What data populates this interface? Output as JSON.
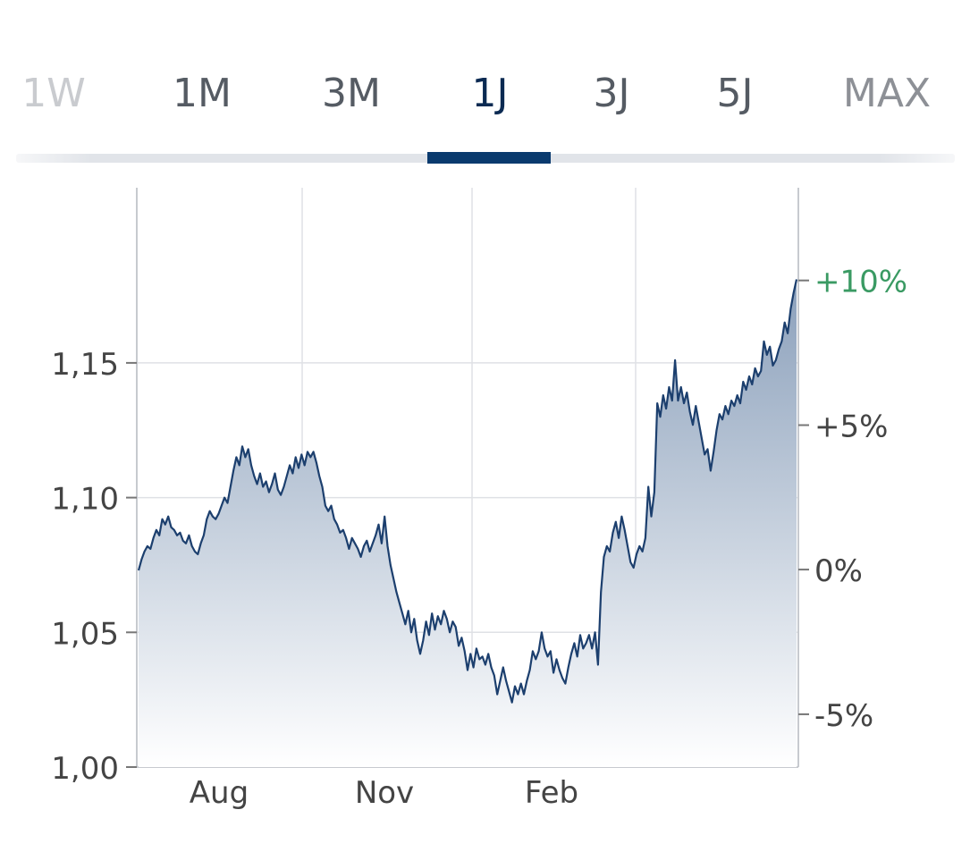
{
  "tabs": [
    {
      "label": "1W",
      "state": "faded"
    },
    {
      "label": "1M",
      "state": "normal"
    },
    {
      "label": "3M",
      "state": "normal"
    },
    {
      "label": "1J",
      "state": "active"
    },
    {
      "label": "3J",
      "state": "normal"
    },
    {
      "label": "5J",
      "state": "normal"
    },
    {
      "label": "MAX",
      "state": "dim"
    }
  ],
  "chart_data": {
    "type": "area",
    "title": "",
    "xlabel": "",
    "ylabel": "",
    "x_tick_labels": [
      "Aug",
      "Nov",
      "Feb"
    ],
    "y_left_ticks": [
      {
        "value": 1.0,
        "label": "1,00"
      },
      {
        "value": 1.05,
        "label": "1,05"
      },
      {
        "value": 1.1,
        "label": "1,10"
      },
      {
        "value": 1.15,
        "label": "1,15"
      }
    ],
    "y_right_ticks": [
      {
        "value": 1.1806,
        "label": "+10%"
      },
      {
        "value": 1.1269,
        "label": "+5%"
      },
      {
        "value": 1.0733,
        "label": "0%"
      },
      {
        "value": 1.0196,
        "label": "-5%"
      }
    ],
    "ylim": [
      1.0,
      1.215
    ],
    "grid": true,
    "colors": {
      "line": "#1c3f6e",
      "fill_top": "#8ba0bb",
      "fill_bottom": "#ffffff",
      "positive_label": "#3a9a63",
      "axis_text": "#444444",
      "grid": "#dfe1e5"
    },
    "series": [
      {
        "values": [
          1.073,
          1.077,
          1.08,
          1.082,
          1.081,
          1.085,
          1.088,
          1.086,
          1.092,
          1.09,
          1.093,
          1.089,
          1.088,
          1.086,
          1.087,
          1.084,
          1.083,
          1.086,
          1.082,
          1.08,
          1.079,
          1.083,
          1.086,
          1.092,
          1.095,
          1.093,
          1.092,
          1.094,
          1.097,
          1.1,
          1.098,
          1.104,
          1.11,
          1.115,
          1.112,
          1.119,
          1.115,
          1.118,
          1.112,
          1.108,
          1.105,
          1.109,
          1.104,
          1.106,
          1.102,
          1.105,
          1.109,
          1.103,
          1.101,
          1.104,
          1.108,
          1.112,
          1.109,
          1.115,
          1.111,
          1.116,
          1.112,
          1.117,
          1.115,
          1.117,
          1.113,
          1.108,
          1.104,
          1.097,
          1.095,
          1.097,
          1.092,
          1.09,
          1.087,
          1.088,
          1.085,
          1.081,
          1.085,
          1.083,
          1.081,
          1.078,
          1.082,
          1.084,
          1.08,
          1.083,
          1.086,
          1.09,
          1.083,
          1.093,
          1.082,
          1.075,
          1.07,
          1.065,
          1.061,
          1.057,
          1.053,
          1.058,
          1.05,
          1.055,
          1.047,
          1.042,
          1.047,
          1.054,
          1.049,
          1.057,
          1.051,
          1.056,
          1.053,
          1.058,
          1.055,
          1.05,
          1.054,
          1.052,
          1.045,
          1.048,
          1.043,
          1.036,
          1.042,
          1.037,
          1.044,
          1.04,
          1.041,
          1.038,
          1.042,
          1.037,
          1.034,
          1.027,
          1.032,
          1.037,
          1.032,
          1.028,
          1.024,
          1.03,
          1.027,
          1.031,
          1.027,
          1.032,
          1.036,
          1.043,
          1.04,
          1.043,
          1.05,
          1.044,
          1.041,
          1.043,
          1.035,
          1.04,
          1.036,
          1.033,
          1.031,
          1.037,
          1.042,
          1.046,
          1.041,
          1.049,
          1.044,
          1.046,
          1.049,
          1.044,
          1.05,
          1.038,
          1.065,
          1.078,
          1.082,
          1.08,
          1.087,
          1.091,
          1.085,
          1.093,
          1.088,
          1.082,
          1.076,
          1.074,
          1.079,
          1.082,
          1.08,
          1.085,
          1.104,
          1.093,
          1.102,
          1.135,
          1.13,
          1.138,
          1.133,
          1.141,
          1.136,
          1.151,
          1.136,
          1.141,
          1.135,
          1.139,
          1.132,
          1.127,
          1.134,
          1.128,
          1.122,
          1.116,
          1.118,
          1.11,
          1.117,
          1.125,
          1.131,
          1.129,
          1.134,
          1.131,
          1.136,
          1.134,
          1.138,
          1.135,
          1.143,
          1.14,
          1.145,
          1.142,
          1.148,
          1.145,
          1.147,
          1.158,
          1.153,
          1.156,
          1.149,
          1.151,
          1.155,
          1.158,
          1.165,
          1.161,
          1.17,
          1.176,
          1.181
        ]
      }
    ]
  }
}
